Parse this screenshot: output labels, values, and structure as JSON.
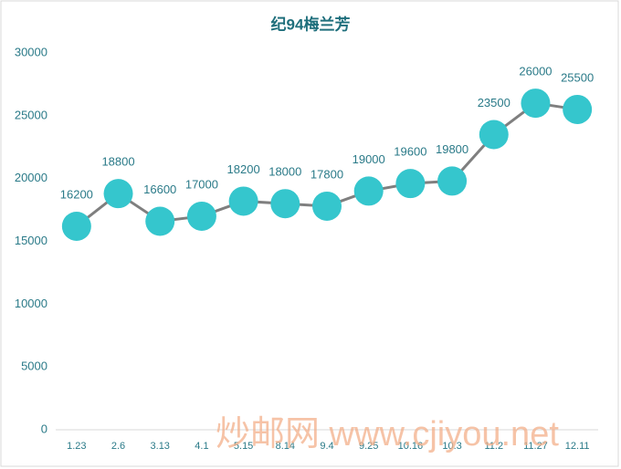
{
  "chart_data": {
    "type": "line",
    "title": "纪94梅兰芳",
    "categories": [
      "1.23",
      "2.6",
      "3.13",
      "4.1",
      "5.15",
      "8.14",
      "9.4",
      "9.25",
      "10.16",
      "10.3",
      "11.2",
      "11.27",
      "12.11"
    ],
    "values": [
      16200,
      18800,
      16600,
      17000,
      18200,
      18000,
      17800,
      19000,
      19600,
      19800,
      23500,
      26000,
      25500
    ],
    "color": "#35c6cd",
    "line_color": "#7f7f7f",
    "ylim": [
      0,
      30000
    ],
    "yticks": [
      0,
      5000,
      10000,
      15000,
      20000,
      25000,
      30000
    ],
    "grid": false,
    "watermark": "炒邮网 www.cjiyou.net"
  }
}
